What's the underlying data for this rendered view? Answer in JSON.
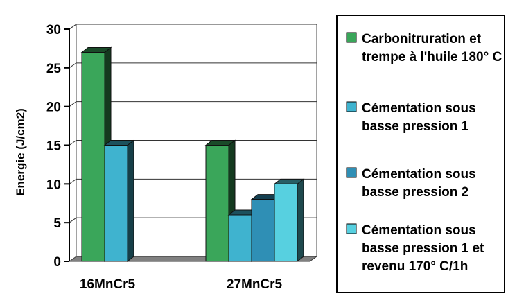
{
  "chart_data": {
    "type": "bar",
    "ylabel": "Energie  (J/cm2)",
    "ylim": [
      0,
      30
    ],
    "yticks": [
      0,
      5,
      10,
      15,
      20,
      25,
      30
    ],
    "grid": true,
    "legend_position": "right",
    "categories": [
      "16MnCr5",
      "27MnCr5"
    ],
    "series": [
      {
        "name": "Carbonitruration et trempe à l'huile 180° C",
        "name_lines": [
          "Carbonitruration et",
          "trempe à l'huile 180° C"
        ],
        "color": "#3aa65a",
        "values": [
          27,
          15
        ]
      },
      {
        "name": "Cémentation sous basse pression 1",
        "name_lines": [
          "Cémentation sous",
          "basse pression 1"
        ],
        "color": "#3fb3cf",
        "values": [
          15,
          6
        ]
      },
      {
        "name": "Cémentation sous basse pression 2",
        "name_lines": [
          "Cémentation sous",
          "basse pression 2"
        ],
        "color": "#2f8fb5",
        "values": [
          null,
          8
        ]
      },
      {
        "name": "Cémentation sous basse pression 1 et revenu 170° C/1h",
        "name_lines": [
          "Cémentation sous",
          "basse pression 1 et",
          "revenu 170° C/1h"
        ],
        "color": "#57d0e0",
        "values": [
          null,
          10
        ]
      }
    ]
  }
}
